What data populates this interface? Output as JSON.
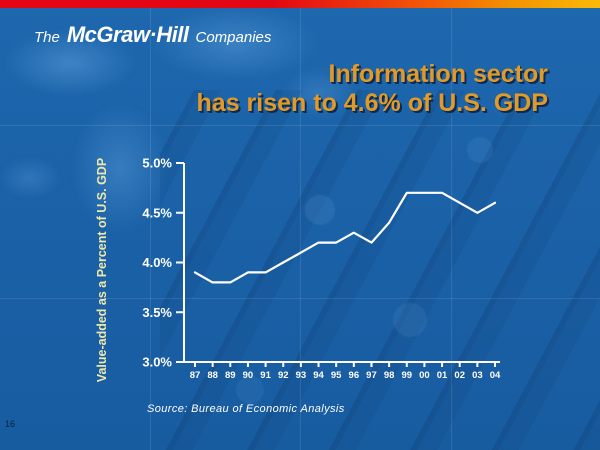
{
  "slide": {
    "logo": {
      "prefix": "The",
      "brand": "McGraw·Hill",
      "suffix": "Companies"
    },
    "title": {
      "line1": "Information sector",
      "line2": "has risen to 4.6% of U.S. GDP"
    },
    "source_note": "Source: Bureau of Economic Analysis",
    "page_number": "16"
  },
  "colors": {
    "slide_background": "#1B62A8",
    "top_bar_red": "#E30613",
    "top_bar_orange": "#F39200",
    "top_bar_yellow": "#FBBA07",
    "title_text": "#E19A27",
    "title_shadow": "#0D2B52",
    "axis_and_line": "#FFFFFF",
    "y_axis_title_text": "#EFE8A9"
  },
  "chart_data": {
    "type": "line",
    "x": [
      "87",
      "88",
      "89",
      "90",
      "91",
      "92",
      "93",
      "94",
      "95",
      "96",
      "97",
      "98",
      "99",
      "00",
      "01",
      "02",
      "03",
      "04"
    ],
    "series": [
      {
        "name": "Information sector value-added as percent of U.S. GDP",
        "values": [
          3.9,
          3.8,
          3.8,
          3.9,
          3.9,
          4.0,
          4.1,
          4.2,
          4.2,
          4.3,
          4.2,
          4.4,
          4.7,
          4.7,
          4.7,
          4.6,
          4.5,
          4.6
        ]
      }
    ],
    "title": "Information sector has risen to 4.6% of U.S. GDP",
    "xlabel": "",
    "ylabel": "Value-added as a Percent of U.S. GDP",
    "ylim": [
      3.0,
      5.0
    ],
    "yticks": [
      5.0,
      4.5,
      4.0,
      3.5,
      3.0
    ],
    "ytick_suffix": "%",
    "grid": false,
    "legend": false,
    "line_color": "#FFFFFF"
  }
}
